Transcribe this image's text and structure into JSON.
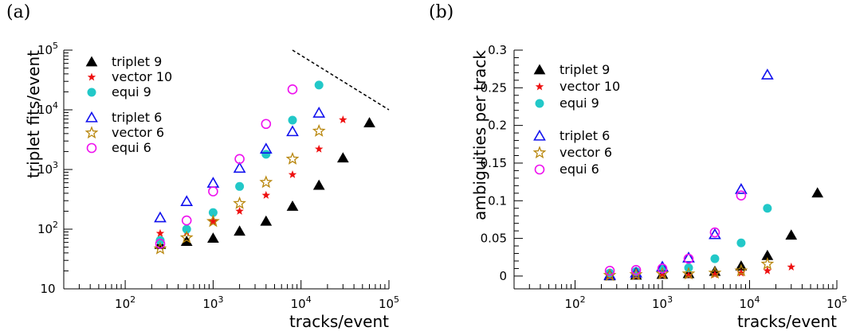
{
  "figure": {
    "panels": [
      "(a)",
      "(b)"
    ]
  },
  "styles": {
    "triplet 9": {
      "marker": "filled-triangle",
      "color": "#000000"
    },
    "vector 10": {
      "marker": "filled-star",
      "color": "#ee1111"
    },
    "equi 9": {
      "marker": "filled-circle",
      "color": "#22c8c8"
    },
    "triplet 6": {
      "marker": "open-triangle",
      "color": "#1111ee"
    },
    "vector 6": {
      "marker": "open-star",
      "color": "#b8860b"
    },
    "equi 6": {
      "marker": "open-circle",
      "color": "#ee11ee"
    }
  },
  "chart_data": [
    {
      "type": "scatter",
      "panel": "(a)",
      "xlabel": "tracks/event",
      "ylabel": "triplet fits/event",
      "xscale": "log",
      "yscale": "log",
      "xlim": [
        20,
        100000
      ],
      "ylim": [
        10,
        100000
      ],
      "xticks": [
        "10²",
        "10³",
        "10⁴",
        "10⁵"
      ],
      "yticks": [
        "10",
        "10²",
        "10³",
        "10⁴",
        "10⁵"
      ],
      "legend": [
        "triplet 9",
        "vector 10",
        "equi 9",
        "triplet 6",
        "vector 6",
        "equi 6"
      ],
      "legend_position": "top-left",
      "reference_line": {
        "style": "dashed",
        "points": [
          [
            8000,
            100000
          ],
          [
            100000,
            10000
          ]
        ]
      },
      "series": [
        {
          "name": "triplet 9",
          "x": [
            250,
            500,
            1000,
            2000,
            4000,
            8000,
            16000,
            30000,
            60000
          ],
          "y": [
            55,
            62,
            70,
            92,
            135,
            240,
            540,
            1550,
            6000
          ]
        },
        {
          "name": "vector 10",
          "x": [
            250,
            500,
            1000,
            2000,
            4000,
            8000,
            16000,
            30000
          ],
          "y": [
            85,
            90,
            135,
            200,
            370,
            820,
            2200,
            6800
          ]
        },
        {
          "name": "equi 9",
          "x": [
            250,
            500,
            1000,
            2000,
            4000,
            8000,
            16000
          ],
          "y": [
            65,
            100,
            190,
            520,
            1800,
            6700,
            26000
          ]
        },
        {
          "name": "triplet 6",
          "x": [
            250,
            500,
            1000,
            2000,
            4000,
            8000,
            16000
          ],
          "y": [
            155,
            290,
            590,
            1050,
            2200,
            4300,
            8800
          ]
        },
        {
          "name": "vector 6",
          "x": [
            250,
            500,
            1000,
            2000,
            4000,
            8000,
            16000
          ],
          "y": [
            47,
            72,
            135,
            270,
            610,
            1500,
            4400
          ]
        },
        {
          "name": "equi 6",
          "x": [
            250,
            500,
            1000,
            2000,
            4000,
            8000
          ],
          "y": [
            57,
            140,
            430,
            1500,
            5800,
            22000
          ]
        }
      ]
    },
    {
      "type": "scatter",
      "panel": "(b)",
      "xlabel": "tracks/event",
      "ylabel": "ambiguities per track",
      "xscale": "log",
      "yscale": "linear",
      "xlim": [
        20,
        100000
      ],
      "ylim": [
        -0.017,
        0.3
      ],
      "xticks": [
        "10²",
        "10³",
        "10⁴",
        "10⁵"
      ],
      "yticks": [
        "0",
        "0.05",
        "0.1",
        "0.15",
        "0.2",
        "0.25",
        "0.3"
      ],
      "legend": [
        "triplet 9",
        "vector 10",
        "equi 9",
        "triplet 6",
        "vector 6",
        "equi 6"
      ],
      "legend_position": "top-left",
      "series": [
        {
          "name": "triplet 9",
          "x": [
            250,
            500,
            1000,
            2000,
            4000,
            8000,
            16000,
            30000,
            60000
          ],
          "y": [
            0.0,
            0.001,
            0.002,
            0.003,
            0.006,
            0.013,
            0.027,
            0.054,
            0.11
          ]
        },
        {
          "name": "vector 10",
          "x": [
            250,
            500,
            1000,
            2000,
            4000,
            8000,
            16000,
            30000
          ],
          "y": [
            0.0,
            0.0,
            0.001,
            0.001,
            0.002,
            0.004,
            0.007,
            0.012
          ]
        },
        {
          "name": "equi 9",
          "x": [
            250,
            500,
            1000,
            2000,
            4000,
            8000,
            16000
          ],
          "y": [
            0.004,
            0.006,
            0.009,
            0.011,
            0.023,
            0.044,
            0.09
          ]
        },
        {
          "name": "triplet 6",
          "x": [
            250,
            500,
            1000,
            2000,
            4000,
            8000,
            16000
          ],
          "y": [
            0.001,
            0.004,
            0.012,
            0.024,
            0.055,
            0.115,
            0.267
          ]
        },
        {
          "name": "vector 6",
          "x": [
            250,
            500,
            1000,
            2000,
            4000,
            8000,
            16000
          ],
          "y": [
            0.001,
            0.002,
            0.003,
            0.003,
            0.004,
            0.007,
            0.016
          ]
        },
        {
          "name": "equi 6",
          "x": [
            250,
            500,
            1000,
            2000,
            4000,
            8000
          ],
          "y": [
            0.007,
            0.008,
            0.01,
            0.023,
            0.058,
            0.107
          ]
        }
      ]
    }
  ]
}
